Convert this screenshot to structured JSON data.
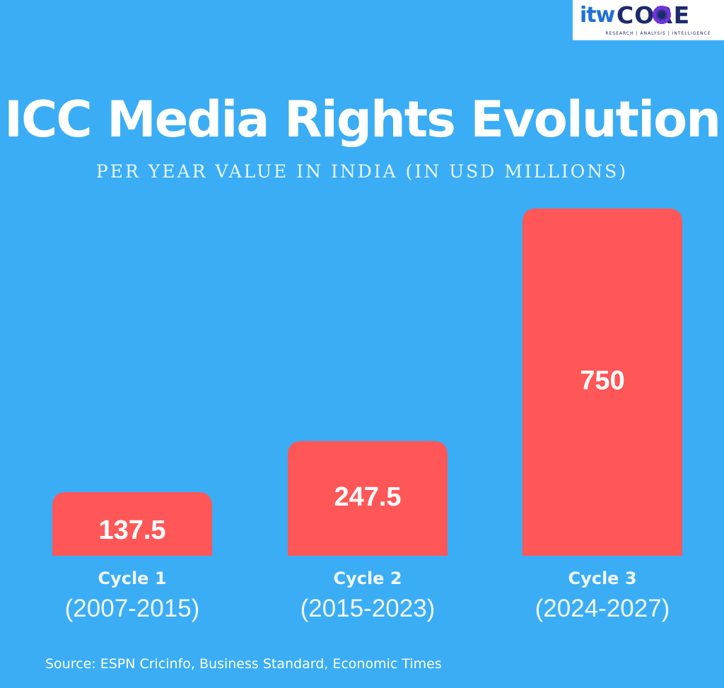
{
  "brand": {
    "logo_prefix": "itw",
    "logo_name": "CORE",
    "logo_tagline": "RESEARCH | ANALYSIS | INTELLIGENCE"
  },
  "colors": {
    "background": "#3aadf5",
    "bar": "#ff5757",
    "text": "#ffffff"
  },
  "chart_data": {
    "type": "bar",
    "title": "ICC Media Rights Evolution",
    "subtitle": "PER YEAR VALUE IN INDIA (IN USD MILLIONS)",
    "categories": [
      {
        "name": "Cycle 1",
        "period": "(2007-2015)"
      },
      {
        "name": "Cycle 2",
        "period": "(2015-2023)"
      },
      {
        "name": "Cycle 3",
        "period": "(2024-2027)"
      }
    ],
    "values": [
      137.5,
      247.5,
      750
    ],
    "value_labels": [
      "137.5",
      "247.5",
      "750"
    ],
    "ylim": [
      0,
      800
    ],
    "grid": false,
    "legend": "none"
  },
  "footer": {
    "source": "Source: ESPN Cricinfo, Business Standard, Economic Times"
  }
}
